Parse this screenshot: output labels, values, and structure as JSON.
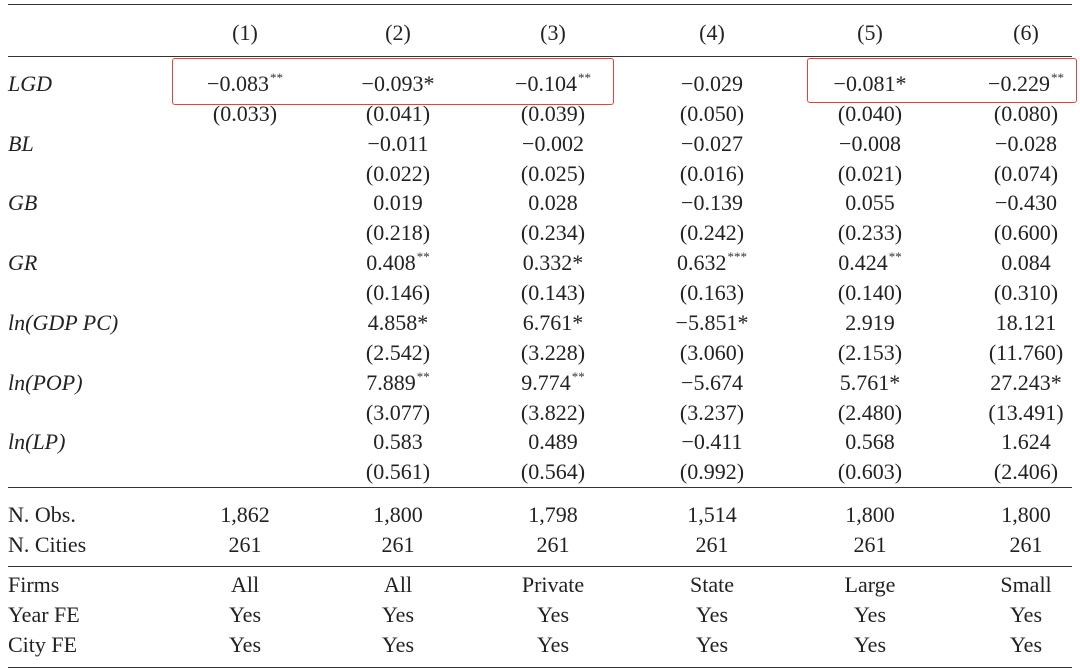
{
  "columns": [
    "(1)",
    "(2)",
    "(3)",
    "(4)",
    "(5)",
    "(6)"
  ],
  "regressors": [
    {
      "label": "LGD",
      "coefficients": [
        {
          "value": "−0.083",
          "stars": "**"
        },
        {
          "value": "−0.093*",
          "stars": ""
        },
        {
          "value": "−0.104",
          "stars": "**"
        },
        {
          "value": "−0.029",
          "stars": ""
        },
        {
          "value": "−0.081*",
          "stars": ""
        },
        {
          "value": "−0.229",
          "stars": "**"
        }
      ],
      "std_errors": [
        "(0.033)",
        "(0.041)",
        "(0.039)",
        "(0.050)",
        "(0.040)",
        "(0.080)"
      ]
    },
    {
      "label": "BL",
      "coefficients": [
        {
          "value": "",
          "stars": ""
        },
        {
          "value": "−0.011",
          "stars": ""
        },
        {
          "value": "−0.002",
          "stars": ""
        },
        {
          "value": "−0.027",
          "stars": ""
        },
        {
          "value": "−0.008",
          "stars": ""
        },
        {
          "value": "−0.028",
          "stars": ""
        }
      ],
      "std_errors": [
        "",
        "(0.022)",
        "(0.025)",
        "(0.016)",
        "(0.021)",
        "(0.074)"
      ]
    },
    {
      "label": "GB",
      "coefficients": [
        {
          "value": "",
          "stars": ""
        },
        {
          "value": "0.019",
          "stars": ""
        },
        {
          "value": "0.028",
          "stars": ""
        },
        {
          "value": "−0.139",
          "stars": ""
        },
        {
          "value": "0.055",
          "stars": ""
        },
        {
          "value": "−0.430",
          "stars": ""
        }
      ],
      "std_errors": [
        "",
        "(0.218)",
        "(0.234)",
        "(0.242)",
        "(0.233)",
        "(0.600)"
      ]
    },
    {
      "label": "GR",
      "coefficients": [
        {
          "value": "",
          "stars": ""
        },
        {
          "value": "0.408",
          "stars": "**"
        },
        {
          "value": "0.332*",
          "stars": ""
        },
        {
          "value": "0.632",
          "stars": "***"
        },
        {
          "value": "0.424",
          "stars": "**"
        },
        {
          "value": "0.084",
          "stars": ""
        }
      ],
      "std_errors": [
        "",
        "(0.146)",
        "(0.143)",
        "(0.163)",
        "(0.140)",
        "(0.310)"
      ]
    },
    {
      "label": "ln(GDP PC)",
      "coefficients": [
        {
          "value": "",
          "stars": ""
        },
        {
          "value": "4.858*",
          "stars": ""
        },
        {
          "value": "6.761*",
          "stars": ""
        },
        {
          "value": "−5.851*",
          "stars": ""
        },
        {
          "value": "2.919",
          "stars": ""
        },
        {
          "value": "18.121",
          "stars": ""
        }
      ],
      "std_errors": [
        "",
        "(2.542)",
        "(3.228)",
        "(3.060)",
        "(2.153)",
        "(11.760)"
      ]
    },
    {
      "label": "ln(POP)",
      "coefficients": [
        {
          "value": "",
          "stars": ""
        },
        {
          "value": "7.889",
          "stars": "**"
        },
        {
          "value": "9.774",
          "stars": "**"
        },
        {
          "value": "−5.674",
          "stars": ""
        },
        {
          "value": "5.761*",
          "stars": ""
        },
        {
          "value": "27.243*",
          "stars": ""
        }
      ],
      "std_errors": [
        "",
        "(3.077)",
        "(3.822)",
        "(3.237)",
        "(2.480)",
        "(13.491)"
      ]
    },
    {
      "label": "ln(LP)",
      "coefficients": [
        {
          "value": "",
          "stars": ""
        },
        {
          "value": "0.583",
          "stars": ""
        },
        {
          "value": "0.489",
          "stars": ""
        },
        {
          "value": "−0.411",
          "stars": ""
        },
        {
          "value": "0.568",
          "stars": ""
        },
        {
          "value": "1.624",
          "stars": ""
        }
      ],
      "std_errors": [
        "",
        "(0.561)",
        "(0.564)",
        "(0.992)",
        "(0.603)",
        "(2.406)"
      ]
    }
  ],
  "counts": [
    {
      "label": "N. Obs.",
      "values": [
        "1,862",
        "1,800",
        "1,798",
        "1,514",
        "1,800",
        "1,800"
      ]
    },
    {
      "label": "N. Cities",
      "values": [
        "261",
        "261",
        "261",
        "261",
        "261",
        "261"
      ]
    }
  ],
  "specs": [
    {
      "label": "Firms",
      "values": [
        "All",
        "All",
        "Private",
        "State",
        "Large",
        "Small"
      ]
    },
    {
      "label": "Year FE",
      "values": [
        "Yes",
        "Yes",
        "Yes",
        "Yes",
        "Yes",
        "Yes"
      ]
    },
    {
      "label": "City FE",
      "values": [
        "Yes",
        "Yes",
        "Yes",
        "Yes",
        "Yes",
        "Yes"
      ]
    }
  ],
  "highlight_color": "#e8413c",
  "highlights": [
    {
      "row": "LGD",
      "columns": [
        "(1)",
        "(2)",
        "(3)"
      ]
    },
    {
      "row": "LGD",
      "columns": [
        "(5)",
        "(6)"
      ]
    }
  ]
}
